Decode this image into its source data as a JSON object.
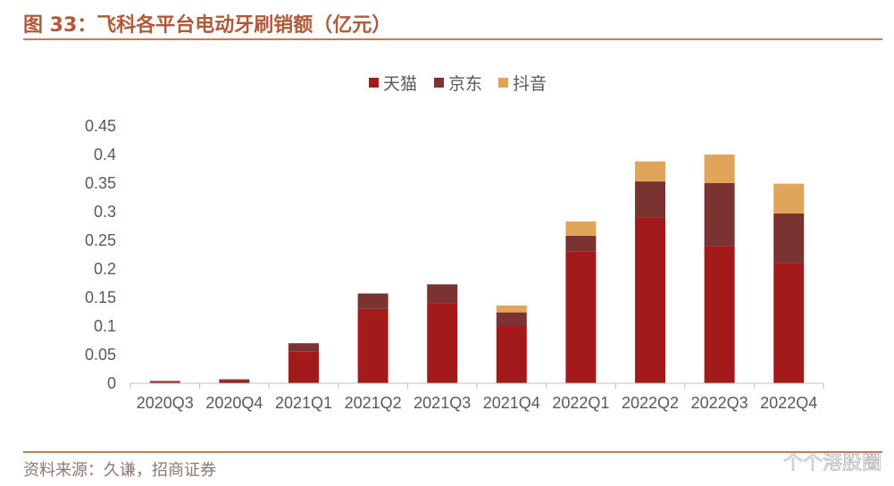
{
  "header": {
    "title": "图 33：飞科各平台电动牙刷销额（亿元）"
  },
  "footer": {
    "source": "资料来源：久谦，招商证券",
    "watermark": "个个港股圈"
  },
  "chart_data": {
    "type": "bar",
    "stacked": true,
    "categories": [
      "2020Q3",
      "2020Q4",
      "2021Q1",
      "2021Q2",
      "2021Q3",
      "2021Q4",
      "2022Q1",
      "2022Q2",
      "2022Q3",
      "2022Q4"
    ],
    "series": [
      {
        "name": "天猫",
        "color": "#a31a1b",
        "values": [
          0.003,
          0.005,
          0.055,
          0.13,
          0.14,
          0.1,
          0.23,
          0.29,
          0.24,
          0.21
        ]
      },
      {
        "name": "京东",
        "color": "#7b3331",
        "values": [
          0.001,
          0.002,
          0.015,
          0.027,
          0.033,
          0.024,
          0.028,
          0.063,
          0.11,
          0.087
        ]
      },
      {
        "name": "抖音",
        "color": "#e0a45a",
        "values": [
          0,
          0,
          0,
          0,
          0,
          0.012,
          0.025,
          0.035,
          0.05,
          0.052
        ]
      }
    ],
    "yticks": [
      "0",
      "0.05",
      "0.1",
      "0.15",
      "0.2",
      "0.25",
      "0.3",
      "0.35",
      "0.4",
      "0.45"
    ],
    "ylim": [
      0,
      0.45
    ],
    "grid": false,
    "legend_position": "top-center"
  }
}
